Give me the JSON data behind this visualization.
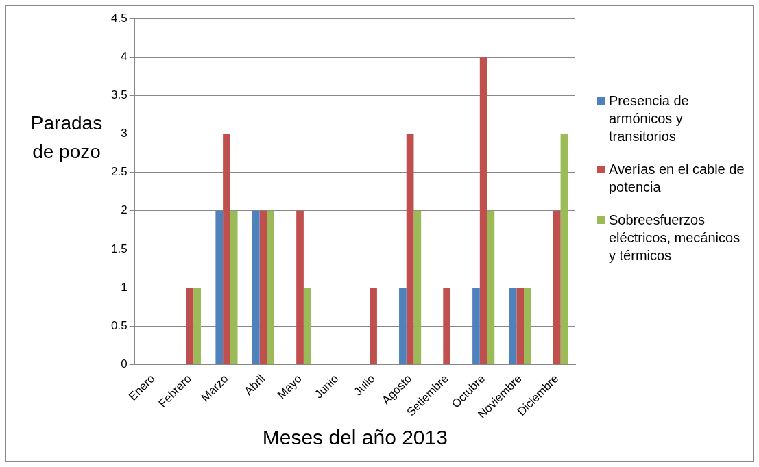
{
  "chart_data": {
    "type": "bar",
    "xlabel": "Meses del año 2013",
    "ylabel": "Paradas de pozo",
    "categories": [
      "Enero",
      "Febrero",
      "Marzo",
      "Abril",
      "Mayo",
      "Junio",
      "Julio",
      "Agosto",
      "Setiembre",
      "Octubre",
      "Noviembre",
      "Diciembre"
    ],
    "series": [
      {
        "name": "Presencia de armónicos y transitorios",
        "color": "#4f81bd",
        "values": [
          0,
          0,
          2,
          2,
          0,
          0,
          0,
          1,
          0,
          1,
          1,
          0
        ]
      },
      {
        "name": "Averías en el cable de potencia",
        "color": "#c0504d",
        "values": [
          0,
          1,
          3,
          2,
          2,
          0,
          1,
          3,
          1,
          4,
          1,
          2
        ]
      },
      {
        "name": "Sobreesfuerzos eléctricos, mecánicos y térmicos",
        "color": "#9bbb59",
        "values": [
          0,
          1,
          2,
          2,
          1,
          0,
          0,
          2,
          0,
          2,
          1,
          3
        ]
      }
    ],
    "ylim": [
      0,
      4.5
    ],
    "yticks": [
      0,
      0.5,
      1,
      1.5,
      2,
      2.5,
      3,
      3.5,
      4,
      4.5
    ],
    "grid": "y",
    "legend": "right"
  }
}
